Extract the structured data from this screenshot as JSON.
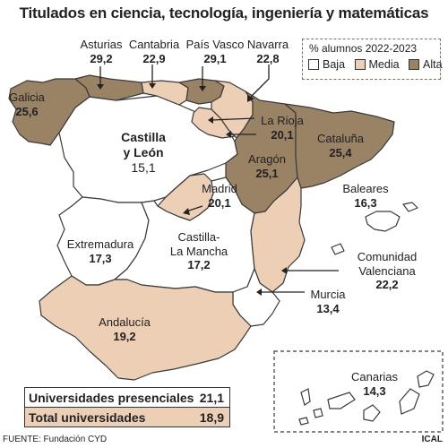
{
  "title": "Titulados en ciencia, tecnología, ingeniería y matemáticas",
  "legend": {
    "title": "% alumnos 2022-2023",
    "items": [
      {
        "label": "Baja",
        "color": "#ffffff"
      },
      {
        "label": "Media",
        "color": "#edcfb6"
      },
      {
        "label": "Alta",
        "color": "#9a8264"
      }
    ]
  },
  "colors": {
    "baja": "#ffffff",
    "media": "#edcfb6",
    "alta": "#9a8264",
    "border": "#3a3a3a"
  },
  "regions": {
    "asturias": {
      "name": "Asturias",
      "value": "29,2",
      "level": "alta"
    },
    "cantabria": {
      "name": "Cantabria",
      "value": "22,9",
      "level": "media"
    },
    "pais_vasco": {
      "name": "País Vasco",
      "value": "29,1",
      "level": "alta"
    },
    "navarra": {
      "name": "Navarra",
      "value": "22,8",
      "level": "media"
    },
    "galicia": {
      "name": "Galicia",
      "value": "25,6",
      "level": "alta"
    },
    "la_rioja": {
      "name": "La Rioja",
      "value": "20,1",
      "level": "media"
    },
    "aragon": {
      "name": "Aragón",
      "value": "25,1",
      "level": "alta"
    },
    "cataluna": {
      "name": "Cataluña",
      "value": "25,4",
      "level": "alta"
    },
    "castilla_leon": {
      "name1": "Castilla",
      "name2": "y León",
      "value": "15,1",
      "level": "baja"
    },
    "madrid": {
      "name": "Madrid",
      "value": "20,1",
      "level": "media"
    },
    "baleares": {
      "name": "Baleares",
      "value": "16,3",
      "level": "baja"
    },
    "extremadura": {
      "name": "Extremadura",
      "value": "17,3",
      "level": "baja"
    },
    "castilla_la_mancha": {
      "name1": "Castilla-",
      "name2": "La Mancha",
      "value": "17,2",
      "level": "baja"
    },
    "valenciana": {
      "name1": "Comunidad",
      "name2": "Valenciana",
      "value": "22,2",
      "level": "media"
    },
    "murcia": {
      "name": "Murcia",
      "value": "13,4",
      "level": "baja"
    },
    "andalucia": {
      "name": "Andalucía",
      "value": "19,2",
      "level": "media"
    },
    "canarias": {
      "name": "Canarias",
      "value": "14,3",
      "level": "baja"
    }
  },
  "totals": {
    "presenciales_label": "Universidades presenciales",
    "presenciales_value": "21,1",
    "total_label": "Total universidades",
    "total_value": "18,9"
  },
  "source": "FUENTE: Fundación CYD",
  "credit": "ICAL"
}
